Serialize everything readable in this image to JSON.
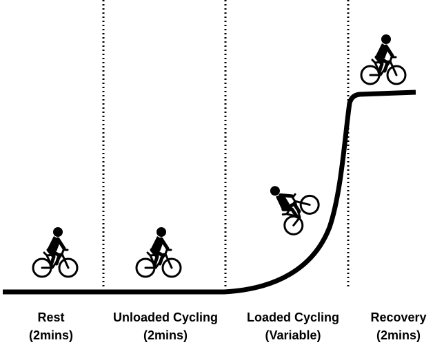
{
  "phases": [
    {
      "name": "Rest",
      "duration": "(2mins)",
      "icon": "cyclist-icon"
    },
    {
      "name": "Unloaded Cycling",
      "duration": "(2mins)",
      "icon": "cyclist-icon"
    },
    {
      "name": "Loaded Cycling",
      "duration": "(Variable)",
      "icon": "cyclist-climbing-icon"
    },
    {
      "name": "Recovery",
      "duration": "(2mins)",
      "icon": "cyclist-icon"
    }
  ],
  "colors": {
    "line": "#000000",
    "divider": "#000000",
    "background": "#ffffff"
  }
}
